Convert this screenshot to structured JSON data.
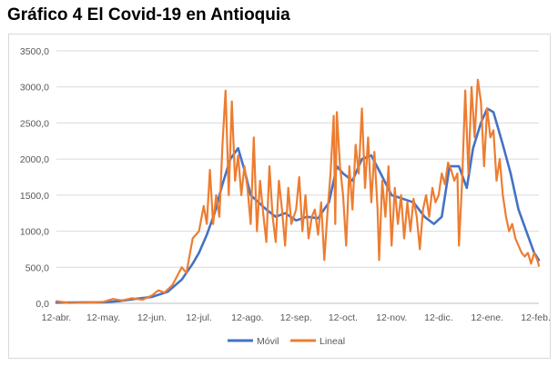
{
  "title": "Gráfico 4 El Covid-19 en Antioquia",
  "colors": {
    "movil": "#4472c4",
    "lineal": "#ed7d31",
    "grid": "#d9d9d9",
    "axis_text": "#595959"
  },
  "chart_data": {
    "type": "line",
    "title": "Gráfico 4 El Covid-19 en Antioquia",
    "xlabel": "",
    "ylabel": "",
    "ylim": [
      0,
      3500
    ],
    "yticks": [
      "0,0",
      "500,0",
      "1000,0",
      "1500,0",
      "2000,0",
      "2500,0",
      "3000,0",
      "3500,0"
    ],
    "xlim": [
      "2020-04-12",
      "2021-02-14"
    ],
    "xticks": [
      {
        "date": "2020-04-12",
        "label": "12-abr."
      },
      {
        "date": "2020-05-12",
        "label": "12-may."
      },
      {
        "date": "2020-06-12",
        "label": "12-jun."
      },
      {
        "date": "2020-07-12",
        "label": "12-jul."
      },
      {
        "date": "2020-08-12",
        "label": "12-ago."
      },
      {
        "date": "2020-09-12",
        "label": "12-sep."
      },
      {
        "date": "2020-10-12",
        "label": "12-oct."
      },
      {
        "date": "2020-11-12",
        "label": "12-nov."
      },
      {
        "date": "2020-12-12",
        "label": "12-dic."
      },
      {
        "date": "2021-01-12",
        "label": "12-ene."
      },
      {
        "date": "2021-02-12",
        "label": "12-feb."
      }
    ],
    "grid": true,
    "legend": "bottom",
    "series": [
      {
        "name": "Móvil",
        "color": "#4472c4",
        "points": [
          [
            "2020-04-12",
            10
          ],
          [
            "2020-05-12",
            15
          ],
          [
            "2020-05-22",
            30
          ],
          [
            "2020-06-01",
            60
          ],
          [
            "2020-06-12",
            90
          ],
          [
            "2020-06-22",
            160
          ],
          [
            "2020-07-01",
            330
          ],
          [
            "2020-07-08",
            550
          ],
          [
            "2020-07-12",
            700
          ],
          [
            "2020-07-17",
            950
          ],
          [
            "2020-07-22",
            1250
          ],
          [
            "2020-07-27",
            1650
          ],
          [
            "2020-08-01",
            2000
          ],
          [
            "2020-08-06",
            2150
          ],
          [
            "2020-08-10",
            1850
          ],
          [
            "2020-08-14",
            1500
          ],
          [
            "2020-08-19",
            1400
          ],
          [
            "2020-08-24",
            1300
          ],
          [
            "2020-08-30",
            1200
          ],
          [
            "2020-09-05",
            1250
          ],
          [
            "2020-09-12",
            1150
          ],
          [
            "2020-09-19",
            1200
          ],
          [
            "2020-09-26",
            1180
          ],
          [
            "2020-10-03",
            1400
          ],
          [
            "2020-10-08",
            1900
          ],
          [
            "2020-10-12",
            1800
          ],
          [
            "2020-10-18",
            1700
          ],
          [
            "2020-10-24",
            2000
          ],
          [
            "2020-10-30",
            2050
          ],
          [
            "2020-11-05",
            1800
          ],
          [
            "2020-11-12",
            1500
          ],
          [
            "2020-11-19",
            1450
          ],
          [
            "2020-11-26",
            1400
          ],
          [
            "2020-12-03",
            1200
          ],
          [
            "2020-12-09",
            1100
          ],
          [
            "2020-12-14",
            1200
          ],
          [
            "2020-12-19",
            1900
          ],
          [
            "2020-12-25",
            1900
          ],
          [
            "2020-12-30",
            1600
          ],
          [
            "2021-01-03",
            2150
          ],
          [
            "2021-01-08",
            2500
          ],
          [
            "2021-01-12",
            2700
          ],
          [
            "2021-01-16",
            2650
          ],
          [
            "2021-01-22",
            2200
          ],
          [
            "2021-01-27",
            1800
          ],
          [
            "2021-02-01",
            1300
          ],
          [
            "2021-02-06",
            1000
          ],
          [
            "2021-02-11",
            700
          ],
          [
            "2021-02-14",
            600
          ]
        ]
      },
      {
        "name": "Lineal",
        "color": "#ed7d31",
        "points": [
          [
            "2020-04-12",
            30
          ],
          [
            "2020-04-20",
            5
          ],
          [
            "2020-05-01",
            10
          ],
          [
            "2020-05-12",
            20
          ],
          [
            "2020-05-18",
            60
          ],
          [
            "2020-05-24",
            40
          ],
          [
            "2020-05-30",
            70
          ],
          [
            "2020-06-06",
            50
          ],
          [
            "2020-06-12",
            110
          ],
          [
            "2020-06-16",
            180
          ],
          [
            "2020-06-20",
            150
          ],
          [
            "2020-06-25",
            250
          ],
          [
            "2020-07-01",
            500
          ],
          [
            "2020-07-04",
            420
          ],
          [
            "2020-07-08",
            900
          ],
          [
            "2020-07-12",
            1000
          ],
          [
            "2020-07-15",
            1350
          ],
          [
            "2020-07-17",
            1100
          ],
          [
            "2020-07-19",
            1850
          ],
          [
            "2020-07-21",
            1100
          ],
          [
            "2020-07-23",
            1500
          ],
          [
            "2020-07-25",
            1200
          ],
          [
            "2020-07-27",
            2200
          ],
          [
            "2020-07-29",
            2950
          ],
          [
            "2020-07-31",
            1500
          ],
          [
            "2020-08-02",
            2800
          ],
          [
            "2020-08-04",
            1700
          ],
          [
            "2020-08-06",
            2050
          ],
          [
            "2020-08-08",
            1500
          ],
          [
            "2020-08-10",
            1900
          ],
          [
            "2020-08-12",
            1600
          ],
          [
            "2020-08-14",
            1100
          ],
          [
            "2020-08-16",
            2300
          ],
          [
            "2020-08-18",
            1000
          ],
          [
            "2020-08-20",
            1700
          ],
          [
            "2020-08-22",
            1250
          ],
          [
            "2020-08-24",
            850
          ],
          [
            "2020-08-26",
            1900
          ],
          [
            "2020-08-28",
            1200
          ],
          [
            "2020-08-30",
            850
          ],
          [
            "2020-09-01",
            1700
          ],
          [
            "2020-09-03",
            1300
          ],
          [
            "2020-09-05",
            800
          ],
          [
            "2020-09-07",
            1600
          ],
          [
            "2020-09-09",
            1100
          ],
          [
            "2020-09-12",
            1300
          ],
          [
            "2020-09-14",
            1750
          ],
          [
            "2020-09-16",
            1000
          ],
          [
            "2020-09-18",
            1500
          ],
          [
            "2020-09-20",
            900
          ],
          [
            "2020-09-22",
            1200
          ],
          [
            "2020-09-24",
            1300
          ],
          [
            "2020-09-26",
            950
          ],
          [
            "2020-09-28",
            1400
          ],
          [
            "2020-09-30",
            600
          ],
          [
            "2020-10-02",
            1250
          ],
          [
            "2020-10-04",
            1800
          ],
          [
            "2020-10-06",
            2600
          ],
          [
            "2020-10-07",
            1100
          ],
          [
            "2020-10-08",
            2650
          ],
          [
            "2020-10-10",
            1900
          ],
          [
            "2020-10-12",
            1500
          ],
          [
            "2020-10-14",
            800
          ],
          [
            "2020-10-16",
            1900
          ],
          [
            "2020-10-18",
            1300
          ],
          [
            "2020-10-20",
            2200
          ],
          [
            "2020-10-22",
            1800
          ],
          [
            "2020-10-24",
            2700
          ],
          [
            "2020-10-26",
            1600
          ],
          [
            "2020-10-28",
            2300
          ],
          [
            "2020-10-30",
            1400
          ],
          [
            "2020-11-01",
            2100
          ],
          [
            "2020-11-03",
            1300
          ],
          [
            "2020-11-04",
            600
          ],
          [
            "2020-11-06",
            1700
          ],
          [
            "2020-11-08",
            1200
          ],
          [
            "2020-11-10",
            1900
          ],
          [
            "2020-11-12",
            800
          ],
          [
            "2020-11-14",
            1600
          ],
          [
            "2020-11-16",
            1100
          ],
          [
            "2020-11-18",
            1500
          ],
          [
            "2020-11-20",
            900
          ],
          [
            "2020-11-22",
            1400
          ],
          [
            "2020-11-24",
            1000
          ],
          [
            "2020-11-26",
            1450
          ],
          [
            "2020-11-28",
            1200
          ],
          [
            "2020-11-30",
            750
          ],
          [
            "2020-12-02",
            1300
          ],
          [
            "2020-12-04",
            1500
          ],
          [
            "2020-12-06",
            1200
          ],
          [
            "2020-12-08",
            1600
          ],
          [
            "2020-12-10",
            1400
          ],
          [
            "2020-12-12",
            1500
          ],
          [
            "2020-12-14",
            1800
          ],
          [
            "2020-12-16",
            1650
          ],
          [
            "2020-12-18",
            1950
          ],
          [
            "2020-12-20",
            1850
          ],
          [
            "2020-12-22",
            1700
          ],
          [
            "2020-12-24",
            1800
          ],
          [
            "2020-12-25",
            800
          ],
          [
            "2020-12-27",
            1700
          ],
          [
            "2020-12-29",
            2950
          ],
          [
            "2020-12-31",
            1800
          ],
          [
            "2021-01-02",
            3000
          ],
          [
            "2021-01-04",
            2300
          ],
          [
            "2021-01-06",
            3100
          ],
          [
            "2021-01-08",
            2800
          ],
          [
            "2021-01-10",
            1900
          ],
          [
            "2021-01-12",
            2700
          ],
          [
            "2021-01-14",
            2300
          ],
          [
            "2021-01-16",
            2400
          ],
          [
            "2021-01-18",
            1700
          ],
          [
            "2021-01-20",
            2000
          ],
          [
            "2021-01-22",
            1500
          ],
          [
            "2021-01-24",
            1200
          ],
          [
            "2021-01-26",
            1000
          ],
          [
            "2021-01-28",
            1100
          ],
          [
            "2021-01-30",
            900
          ],
          [
            "2021-02-01",
            800
          ],
          [
            "2021-02-03",
            700
          ],
          [
            "2021-02-05",
            650
          ],
          [
            "2021-02-07",
            700
          ],
          [
            "2021-02-09",
            550
          ],
          [
            "2021-02-11",
            700
          ],
          [
            "2021-02-13",
            600
          ],
          [
            "2021-02-14",
            520
          ]
        ]
      }
    ]
  }
}
